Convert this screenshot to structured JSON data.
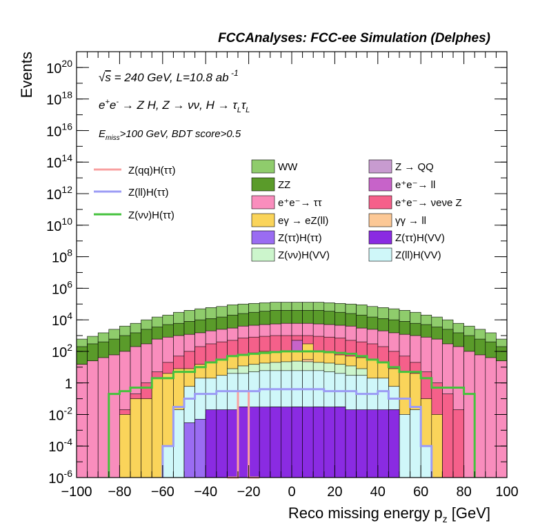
{
  "chart_data": {
    "type": "histogram",
    "title": "FCCAnalyses: FCC-ee Simulation (Delphes)",
    "xlabel": "Reco missing energy p_z [GeV]",
    "ylabel": "Events",
    "xlim": [
      -100,
      100
    ],
    "ylim": [
      1e-06,
      1e+21
    ],
    "ylog": true,
    "grid": false,
    "annotations": {
      "sqrt_s": "√s = 240 GeV, L=10.8 ab⁻¹",
      "process": "e⁺e⁻ → Z H, Z → νν, H → τLτL",
      "cuts": "E_miss>100 GeV, BDT score>0.5"
    },
    "x_ticks": [
      -100,
      -80,
      -60,
      -40,
      -20,
      0,
      20,
      40,
      60,
      80,
      100
    ],
    "y_ticks": [
      "10^-6",
      "10^-4",
      "10^-2",
      "1",
      "10^2",
      "10^4",
      "10^6",
      "10^8",
      "10^10",
      "10^12",
      "10^14",
      "10^16",
      "10^18",
      "10^20"
    ],
    "bin_edges": [
      -100,
      -95,
      -90,
      -85,
      -80,
      -75,
      -70,
      -65,
      -60,
      -55,
      -50,
      -45,
      -40,
      -35,
      -30,
      -25,
      -20,
      -15,
      -10,
      -5,
      0,
      5,
      10,
      15,
      20,
      25,
      30,
      35,
      40,
      45,
      50,
      55,
      60,
      65,
      70,
      75,
      80,
      85,
      90,
      95,
      100
    ],
    "stack_cumulative_order": [
      "Z(ττ)H(VV)",
      "Z(ττ)H(ττ)",
      "Z(ll)H(VV)",
      "Z(νν)H(VV)",
      "γγ → ll",
      "eγ → eZ(ll)",
      "Z → QQ",
      "e⁺e⁻ → ll",
      "e⁺e⁻ → νeνe Z",
      "e⁺e⁻ → ττ",
      "ZZ",
      "WW"
    ],
    "stack_layers": [
      {
        "name": "Z(ττ)H(VV)",
        "color": "#8a2be2",
        "top": [
          null,
          null,
          null,
          null,
          null,
          null,
          null,
          null,
          null,
          null,
          null,
          null,
          0.02,
          0.02,
          0.02,
          0.03,
          0.03,
          0.03,
          0.03,
          0.03,
          0.03,
          0.03,
          0.03,
          0.03,
          0.03,
          0.02,
          0.02,
          0.02,
          0.02,
          0.02,
          null,
          null,
          null,
          null,
          null,
          null,
          null,
          null,
          null,
          null
        ]
      },
      {
        "name": "Z(ττ)H(ττ)",
        "color": "#9a6cf2",
        "top": [
          null,
          null,
          null,
          null,
          null,
          null,
          null,
          null,
          null,
          null,
          0.003,
          0.005,
          0.01,
          0.01,
          0.002,
          0.03,
          0.01,
          0.002,
          0.03,
          0.01,
          0.03,
          0.005,
          0.03,
          0.001,
          0.03,
          0.0006,
          0.001,
          0.01,
          0.01,
          0.02,
          null,
          null,
          null,
          null,
          null,
          null,
          null,
          null,
          null,
          null
        ]
      },
      {
        "name": "Z(ll)H(VV)",
        "color": "#cff7f9",
        "top": [
          null,
          null,
          null,
          null,
          null,
          null,
          null,
          null,
          0.0001,
          0.02,
          0.6,
          2,
          2,
          3,
          4,
          4,
          5,
          6,
          6,
          6,
          6,
          6,
          6,
          5,
          4,
          3,
          3,
          2,
          2,
          0.6,
          0.01,
          0.02,
          0.0001,
          null,
          null,
          null,
          null,
          null,
          null,
          null
        ]
      },
      {
        "name": "Z(νν)H(VV)",
        "color": "#ccf5cc",
        "top": [
          null,
          null,
          null,
          null,
          null,
          null,
          null,
          null,
          null,
          null,
          null,
          null,
          null,
          null,
          8,
          12,
          15,
          18,
          20,
          22,
          24,
          22,
          20,
          18,
          15,
          12,
          8,
          null,
          null,
          null,
          null,
          null,
          null,
          null,
          null,
          null,
          null,
          null,
          null,
          null
        ]
      },
      {
        "name": "γγ → ll",
        "color": "#fcc896",
        "top": [
          null,
          null,
          null,
          null,
          null,
          null,
          null,
          null,
          null,
          null,
          null,
          null,
          null,
          null,
          null,
          null,
          null,
          null,
          null,
          null,
          null,
          30,
          null,
          null,
          null,
          null,
          null,
          null,
          null,
          null,
          null,
          null,
          null,
          null,
          null,
          null,
          null,
          null,
          null,
          null
        ]
      },
      {
        "name": "eγ → eZ(ll)",
        "color": "#fad45a",
        "top": [
          null,
          null,
          null,
          null,
          0.01,
          0.1,
          0.1,
          2,
          4,
          8,
          8,
          15,
          20,
          30,
          50,
          60,
          80,
          100,
          100,
          100,
          100,
          300,
          100,
          80,
          60,
          50,
          40,
          30,
          20,
          8,
          5,
          4,
          0.1,
          0.01,
          null,
          null,
          null,
          null,
          null,
          null
        ]
      },
      {
        "name": "Z → QQ",
        "color": "#c89bd0",
        "top": [
          null,
          null,
          null,
          null,
          null,
          null,
          null,
          null,
          null,
          null,
          null,
          null,
          15,
          20,
          30,
          40,
          60,
          80,
          100,
          100,
          100,
          80,
          60,
          40,
          30,
          20,
          15,
          null,
          null,
          null,
          null,
          null,
          null,
          null,
          null,
          null,
          null,
          null,
          null,
          null
        ]
      },
      {
        "name": "e⁺e⁻ → ll",
        "color": "#c763c9",
        "top": [
          null,
          null,
          null,
          null,
          null,
          null,
          null,
          null,
          null,
          null,
          null,
          null,
          null,
          null,
          null,
          null,
          null,
          null,
          null,
          null,
          500,
          null,
          null,
          null,
          null,
          null,
          null,
          null,
          null,
          null,
          null,
          null,
          null,
          null,
          null,
          null,
          null,
          null,
          null,
          null
        ]
      },
      {
        "name": "e⁺e⁻ → νeνe Z",
        "color": "#f5608a",
        "top": [
          null,
          null,
          null,
          null,
          0.02,
          0.2,
          1,
          5,
          20,
          50,
          100,
          200,
          300,
          400,
          500,
          700,
          800,
          900,
          1000,
          1000,
          1000,
          1000,
          900,
          800,
          700,
          500,
          400,
          300,
          200,
          100,
          50,
          20,
          5,
          1,
          0.2,
          0.02,
          null,
          null,
          null,
          null
        ]
      },
      {
        "name": "e⁺e⁻ → ττ",
        "color": "#f98dbd",
        "top": [
          15,
          25,
          40,
          60,
          100,
          200,
          300,
          600,
          800,
          1000,
          1200,
          1500,
          2000,
          2500,
          3000,
          4000,
          4500,
          5000,
          5500,
          6000,
          6000,
          6000,
          5500,
          5000,
          4500,
          4000,
          3000,
          2500,
          2000,
          1500,
          1200,
          1000,
          800,
          600,
          300,
          200,
          100,
          60,
          40,
          25
        ]
      },
      {
        "name": "ZZ",
        "color": "#5a9b2a",
        "top": [
          200,
          300,
          400,
          600,
          1000,
          1500,
          2500,
          3500,
          5000,
          6000,
          8000,
          10000,
          12000,
          15000,
          20000,
          25000,
          30000,
          35000,
          40000,
          40000,
          40000,
          40000,
          40000,
          35000,
          30000,
          25000,
          20000,
          15000,
          12000,
          10000,
          8000,
          6000,
          5000,
          3500,
          2500,
          1500,
          1000,
          600,
          400,
          200
        ]
      },
      {
        "name": "WW",
        "color": "#8fcc6c",
        "top": [
          600,
          900,
          1500,
          2500,
          4000,
          6000,
          10000,
          15000,
          20000,
          30000,
          40000,
          50000,
          60000,
          70000,
          90000,
          100000,
          110000,
          120000,
          130000,
          130000,
          130000,
          130000,
          130000,
          120000,
          110000,
          100000,
          90000,
          70000,
          60000,
          50000,
          40000,
          30000,
          20000,
          15000,
          10000,
          6000,
          4000,
          2500,
          1500,
          600
        ]
      }
    ],
    "overlay_lines": [
      {
        "name": "Z(qq)H(ττ)",
        "color": "#f8a0a0",
        "values": [
          null,
          null,
          null,
          null,
          null,
          null,
          null,
          null,
          null,
          null,
          null,
          null,
          null,
          null,
          1e-06,
          0.3,
          1e-06,
          null,
          null,
          null,
          null,
          null,
          null,
          null,
          null,
          null,
          null,
          null,
          null,
          null,
          null,
          null,
          null,
          null,
          null,
          null,
          null,
          null,
          null,
          null
        ]
      },
      {
        "name": "Z(ll)H(ττ)",
        "color": "#9b9bf5",
        "values": [
          null,
          null,
          null,
          null,
          null,
          null,
          null,
          null,
          0.0001,
          0.03,
          0.1,
          0.2,
          0.2,
          0.3,
          0.3,
          0.3,
          0.3,
          0.4,
          0.4,
          0.4,
          0.4,
          0.4,
          0.4,
          0.3,
          0.3,
          0.3,
          0.2,
          0.2,
          0.3,
          0.1,
          0.1,
          0.03,
          0.0001,
          null,
          null,
          null,
          null,
          null,
          null,
          null
        ]
      },
      {
        "name": "Z(νν)H(ττ)",
        "color": "#44c23c",
        "values": [
          null,
          null,
          null,
          0.2,
          0.3,
          0.5,
          0.5,
          2,
          2,
          5,
          5,
          10,
          20,
          30,
          50,
          60,
          70,
          80,
          90,
          100,
          100,
          100,
          100,
          90,
          80,
          70,
          50,
          30,
          20,
          10,
          5,
          5,
          2,
          0.5,
          0.5,
          0.5,
          0.2,
          null,
          null,
          null
        ]
      }
    ],
    "legend": {
      "lines": [
        "Z(qq)H(ττ)",
        "Z(ll)H(ττ)",
        "Z(νν)H(ττ)"
      ],
      "col1": [
        {
          "label": "WW",
          "color": "#8fcc6c"
        },
        {
          "label": "ZZ",
          "color": "#5a9b2a"
        },
        {
          "label": "e⁺e⁻→ ττ",
          "color": "#f98dbd"
        },
        {
          "label": "eγ → eZ(ll)",
          "color": "#fad45a"
        },
        {
          "label": "Z(ττ)H(ττ)",
          "color": "#9a6cf2"
        },
        {
          "label": "Z(νν)H(VV)",
          "color": "#ccf5cc"
        }
      ],
      "col2": [
        {
          "label": "Z → QQ",
          "color": "#c89bd0"
        },
        {
          "label": "e⁺e⁻→ ll",
          "color": "#c763c9"
        },
        {
          "label": "e⁺e⁻→ νeνe Z",
          "color": "#f5608a"
        },
        {
          "label": "γγ → ll",
          "color": "#fcc896"
        },
        {
          "label": "Z(ττ)H(VV)",
          "color": "#8a2be2"
        },
        {
          "label": "Z(ll)H(VV)",
          "color": "#cff7f9"
        }
      ]
    }
  }
}
